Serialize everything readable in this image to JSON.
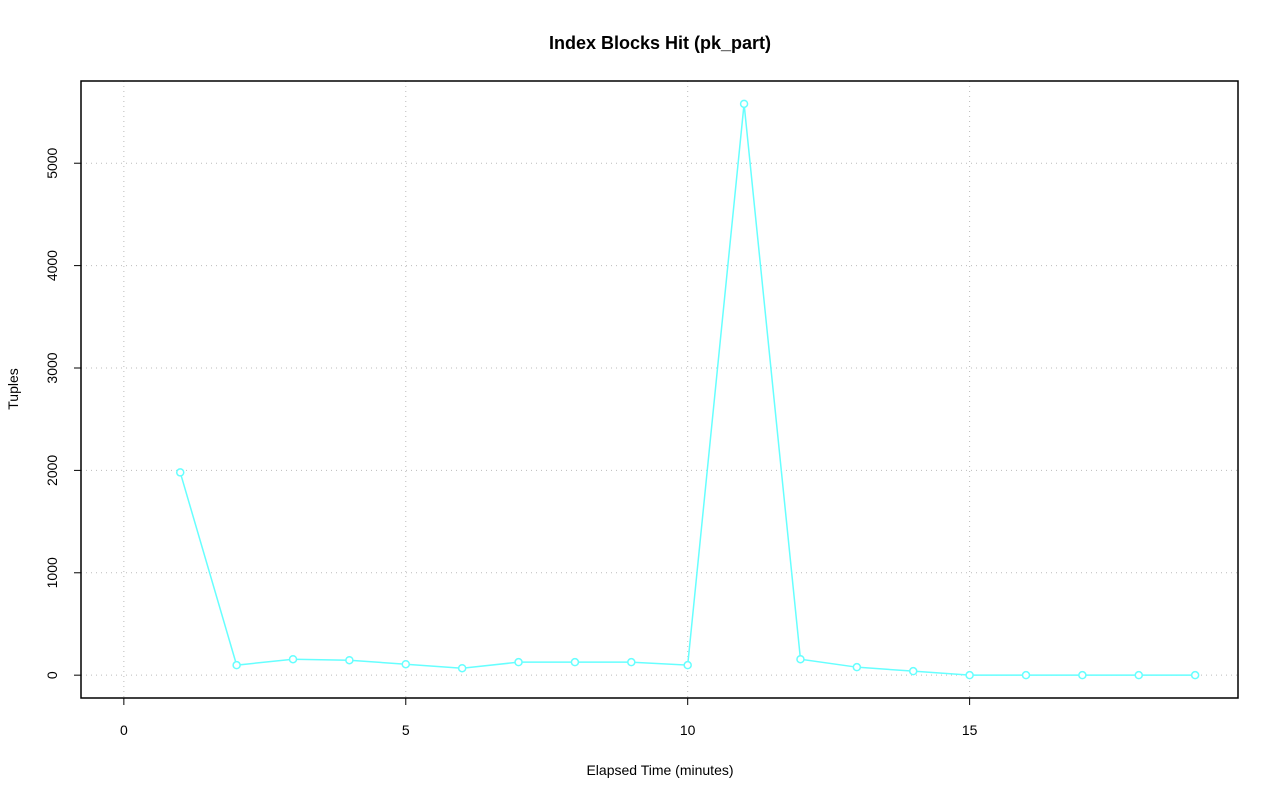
{
  "chart_data": {
    "type": "line",
    "title": "Index Blocks Hit (pk_part)",
    "x_label": "Elapsed Time (minutes)",
    "y_label": "Tuples",
    "series": [
      {
        "color": "#66ffff",
        "x": [
          1,
          2,
          3,
          4,
          5,
          6,
          7,
          8,
          9,
          10,
          11,
          12,
          13,
          14,
          15,
          16,
          17,
          18,
          19
        ],
        "values": [
          1980,
          98,
          156,
          146,
          107,
          68,
          127,
          127,
          127,
          98,
          5580,
          156,
          78,
          39,
          0,
          0,
          0,
          0,
          0
        ]
      }
    ],
    "xlim": [
      -0.76,
      19.76
    ],
    "xticks": [
      0,
      5,
      10,
      15
    ],
    "ylim": [
      -223,
      5803
    ],
    "yticks": [
      0,
      1000,
      2000,
      3000,
      4000,
      5000
    ],
    "grid": true
  }
}
